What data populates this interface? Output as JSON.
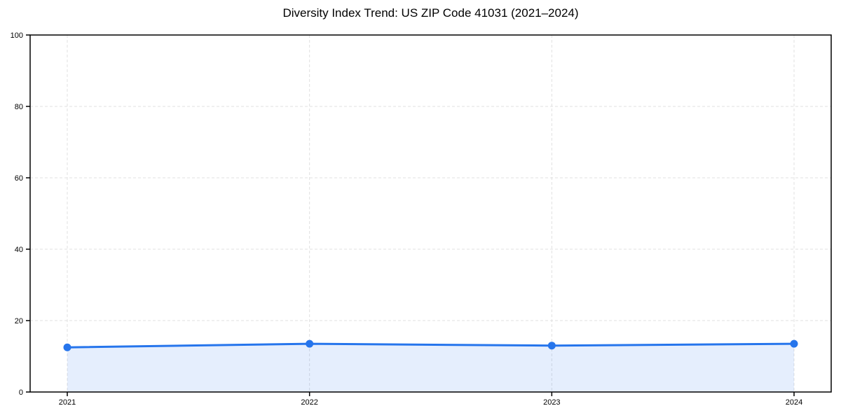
{
  "chart_data": {
    "type": "area",
    "title": "Diversity Index Trend: US ZIP Code 41031 (2021–2024)",
    "categories": [
      "2021",
      "2022",
      "2023",
      "2024"
    ],
    "values": [
      12.5,
      13.5,
      13.0,
      13.5
    ],
    "xlabel": "",
    "ylabel": "",
    "ylim": [
      0,
      100
    ],
    "yticks": [
      0,
      20,
      40,
      60,
      80,
      100
    ],
    "grid": "dashed, horizontal and vertical",
    "legend": "none",
    "colors": {
      "line": "#2675ec",
      "marker": "#2675ec",
      "area_fill": "#e4edfc",
      "grid": "#e0e0e0",
      "axis": "#000000",
      "background": "#ffffff",
      "title_text": "#000000",
      "tick_text": "#000000"
    }
  }
}
